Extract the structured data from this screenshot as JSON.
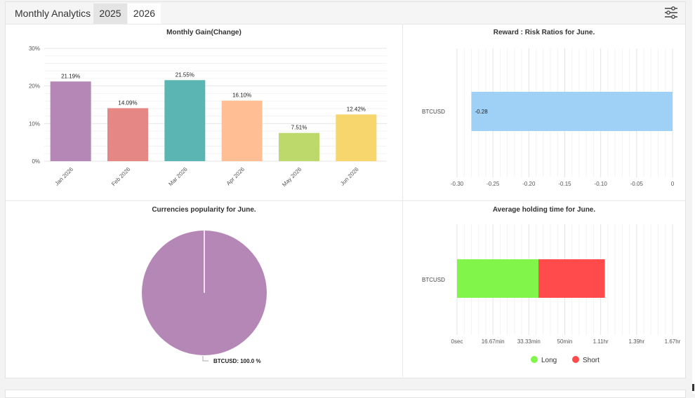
{
  "header": {
    "title": "Monthly Analytics",
    "tabs": [
      {
        "label": "2025",
        "active": false
      },
      {
        "label": "2026",
        "active": true
      }
    ],
    "filter_icon": "sliders-icon"
  },
  "monthly_gain": {
    "title": "Monthly Gain(Change)",
    "y_ticks": [
      "30%",
      "20%",
      "10%",
      "0%"
    ],
    "data_labels": [
      "21.19%",
      "14.09%",
      "21.55%",
      "16.10%",
      "7.51%",
      "12.42%"
    ],
    "x_labels": [
      "Jan 2026",
      "Feb 2026",
      "Mar 2026",
      "Apr 2026",
      "May 2026",
      "Jun 2026"
    ]
  },
  "reward_risk": {
    "title": "Reward : Risk Ratios for June.",
    "category": "BTCUSD",
    "bar_label": "-0.28",
    "x_ticks": [
      "-0.30",
      "-0.25",
      "-0.20",
      "-0.15",
      "-0.10",
      "-0.05",
      "0"
    ]
  },
  "currencies": {
    "title": "Currencies popularity for June.",
    "slice_label": "BTCUSD: 100.0 %"
  },
  "holding_time": {
    "title": "Average holding time for June.",
    "category": "BTCUSD",
    "x_ticks": [
      "0sec",
      "16.67min",
      "33.33min",
      "50min",
      "1.11hr",
      "1.39hr",
      "1.67hr"
    ],
    "legend": [
      {
        "label": "Long",
        "color": "#82f54a"
      },
      {
        "label": "Short",
        "color": "#ff4b4b"
      }
    ]
  },
  "chart_data": [
    {
      "type": "bar",
      "title": "Monthly Gain(Change)",
      "categories": [
        "Jan 2026",
        "Feb 2026",
        "Mar 2026",
        "Apr 2026",
        "May 2026",
        "Jun 2026"
      ],
      "values": [
        21.19,
        14.09,
        21.55,
        16.1,
        7.51,
        12.42
      ],
      "colors": [
        "#b587b6",
        "#e58785",
        "#5bb5b3",
        "#ffbe94",
        "#bdd96c",
        "#f8d66e"
      ],
      "ylim": [
        0,
        30
      ],
      "y_unit": "%",
      "grid": true
    },
    {
      "type": "bar",
      "orientation": "horizontal",
      "title": "Reward : Risk Ratios for June.",
      "categories": [
        "BTCUSD"
      ],
      "values": [
        -0.28
      ],
      "colors": [
        "#9fd0f5"
      ],
      "xlim": [
        -0.3,
        0
      ],
      "grid": true
    },
    {
      "type": "pie",
      "title": "Currencies popularity for June.",
      "labels": [
        "BTCUSD"
      ],
      "values": [
        100.0
      ],
      "colors": [
        "#b587b6"
      ]
    },
    {
      "type": "bar",
      "orientation": "horizontal",
      "stacked": true,
      "title": "Average holding time for June.",
      "categories": [
        "BTCUSD"
      ],
      "series": [
        {
          "name": "Long",
          "values_minutes": [
            37.8
          ],
          "color": "#82f54a"
        },
        {
          "name": "Short",
          "values_minutes": [
            30.8
          ],
          "color": "#ff4b4b"
        }
      ],
      "xlim_minutes": [
        0,
        100
      ],
      "legend_position": "bottom",
      "grid": true
    }
  ]
}
